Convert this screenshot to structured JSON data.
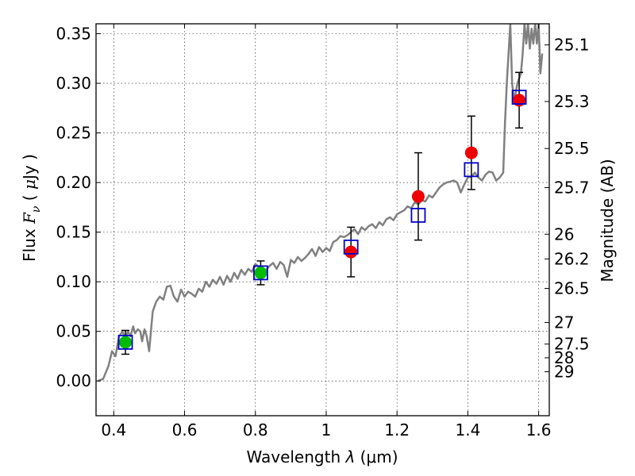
{
  "chart_data": {
    "type": "scatter",
    "xlabel": "Wavelength  λ (μm)",
    "ylabel": "Flux  F_ν  ( μJy )",
    "ylabel_parts": {
      "prefix": "Flux ",
      "symbol": "F",
      "subscript": "ν",
      "paren_open": " ( ",
      "mu": "μ",
      "unit": "Jy",
      "paren_close": " )"
    },
    "xlabel_parts": {
      "prefix": "Wavelength  ",
      "symbol": "λ",
      "unit": " (μm)"
    },
    "y2label": "Magnitude (AB)",
    "xlim": [
      0.35,
      1.63
    ],
    "ylim": [
      -0.035,
      0.36
    ],
    "grid": true,
    "x_ticks": [
      0.4,
      0.6,
      0.8,
      1.0,
      1.2,
      1.4,
      1.6
    ],
    "x_tick_labels": [
      "0.4",
      "0.6",
      "0.8",
      "1",
      "1.2",
      "1.4",
      "1.6"
    ],
    "y_ticks": [
      0.0,
      0.05,
      0.1,
      0.15,
      0.2,
      0.25,
      0.3,
      0.35
    ],
    "y_tick_labels": [
      "0.00",
      "0.05",
      "0.10",
      "0.15",
      "0.20",
      "0.25",
      "0.30",
      "0.35"
    ],
    "y2_ticks": [
      {
        "label": "25.1",
        "flux": 0.3387
      },
      {
        "label": "25.3",
        "flux": 0.2817
      },
      {
        "label": "25.5",
        "flux": 0.2343
      },
      {
        "label": "25.7",
        "flux": 0.1949
      },
      {
        "label": "26",
        "flux": 0.1479
      },
      {
        "label": "26.2",
        "flux": 0.123
      },
      {
        "label": "26.5",
        "flux": 0.0933
      },
      {
        "label": "27",
        "flux": 0.0589
      },
      {
        "label": "27.5",
        "flux": 0.0372
      },
      {
        "label": "28",
        "flux": 0.0234
      },
      {
        "label": "29",
        "flux": 0.0093
      }
    ],
    "series": [
      {
        "type": "line",
        "color": "#808080",
        "x": [
          0.355,
          0.37,
          0.385,
          0.395,
          0.405,
          0.415,
          0.425,
          0.432,
          0.44,
          0.447,
          0.455,
          0.46,
          0.468,
          0.475,
          0.48,
          0.487,
          0.493,
          0.5,
          0.51,
          0.52,
          0.53,
          0.54,
          0.55,
          0.56,
          0.57,
          0.58,
          0.59,
          0.6,
          0.61,
          0.62,
          0.63,
          0.64,
          0.65,
          0.66,
          0.67,
          0.68,
          0.69,
          0.7,
          0.71,
          0.72,
          0.73,
          0.74,
          0.75,
          0.76,
          0.77,
          0.78,
          0.79,
          0.8,
          0.81,
          0.82,
          0.83,
          0.84,
          0.85,
          0.86,
          0.87,
          0.88,
          0.89,
          0.9,
          0.91,
          0.92,
          0.93,
          0.94,
          0.95,
          0.96,
          0.97,
          0.98,
          0.99,
          1.0,
          1.01,
          1.02,
          1.03,
          1.04,
          1.05,
          1.06,
          1.07,
          1.08,
          1.09,
          1.1,
          1.11,
          1.12,
          1.13,
          1.14,
          1.15,
          1.16,
          1.17,
          1.18,
          1.19,
          1.2,
          1.21,
          1.22,
          1.23,
          1.24,
          1.25,
          1.26,
          1.27,
          1.28,
          1.29,
          1.3,
          1.31,
          1.32,
          1.33,
          1.34,
          1.35,
          1.36,
          1.37,
          1.38,
          1.39,
          1.4,
          1.41,
          1.42,
          1.43,
          1.44,
          1.45,
          1.46,
          1.47,
          1.48,
          1.49,
          1.5,
          1.505,
          1.51,
          1.52,
          1.525,
          1.53,
          1.535,
          1.54,
          1.545,
          1.55,
          1.555,
          1.56,
          1.565,
          1.57,
          1.575,
          1.58,
          1.585,
          1.59,
          1.595,
          1.6,
          1.605,
          1.61
        ],
        "y": [
          0.0,
          0.002,
          0.015,
          0.03,
          0.025,
          0.045,
          0.05,
          0.042,
          0.05,
          0.045,
          0.055,
          0.048,
          0.052,
          0.05,
          0.04,
          0.052,
          0.045,
          0.03,
          0.07,
          0.08,
          0.085,
          0.082,
          0.095,
          0.096,
          0.085,
          0.08,
          0.092,
          0.085,
          0.09,
          0.088,
          0.085,
          0.093,
          0.09,
          0.1,
          0.095,
          0.102,
          0.098,
          0.105,
          0.097,
          0.106,
          0.1,
          0.109,
          0.103,
          0.112,
          0.107,
          0.113,
          0.11,
          0.118,
          0.115,
          0.11,
          0.112,
          0.116,
          0.119,
          0.113,
          0.12,
          0.117,
          0.105,
          0.122,
          0.119,
          0.125,
          0.121,
          0.124,
          0.128,
          0.133,
          0.126,
          0.135,
          0.13,
          0.134,
          0.131,
          0.14,
          0.142,
          0.146,
          0.145,
          0.147,
          0.15,
          0.153,
          0.148,
          0.155,
          0.152,
          0.156,
          0.158,
          0.154,
          0.16,
          0.157,
          0.163,
          0.165,
          0.162,
          0.168,
          0.17,
          0.172,
          0.176,
          0.174,
          0.18,
          0.178,
          0.182,
          0.181,
          0.187,
          0.185,
          0.19,
          0.195,
          0.198,
          0.2,
          0.201,
          0.202,
          0.2,
          0.19,
          0.198,
          0.205,
          0.206,
          0.21,
          0.205,
          0.202,
          0.208,
          0.211,
          0.21,
          0.202,
          0.205,
          0.21,
          0.26,
          0.3,
          0.36,
          0.3,
          0.285,
          0.29,
          0.3,
          0.305,
          0.31,
          0.33,
          0.36,
          0.34,
          0.36,
          0.335,
          0.355,
          0.34,
          0.36,
          0.34,
          0.36,
          0.31,
          0.33
        ]
      },
      {
        "type": "open-square",
        "color": "#0000cc",
        "x": [
          0.433,
          0.815,
          1.07,
          1.26,
          1.41,
          1.545
        ],
        "y": [
          0.039,
          0.109,
          0.135,
          0.167,
          0.213,
          0.286
        ]
      },
      {
        "type": "filled-circle",
        "x": [
          0.433,
          0.815,
          1.07,
          1.26,
          1.41,
          1.545
        ],
        "y": [
          0.039,
          0.109,
          0.13,
          0.186,
          0.23,
          0.283
        ],
        "yerr": [
          0.012,
          0.012,
          0.025,
          0.044,
          0.037,
          0.028
        ],
        "colors": [
          "#00bb00",
          "#00bb00",
          "#ee0000",
          "#ee0000",
          "#ee0000",
          "#ee0000"
        ]
      }
    ]
  }
}
